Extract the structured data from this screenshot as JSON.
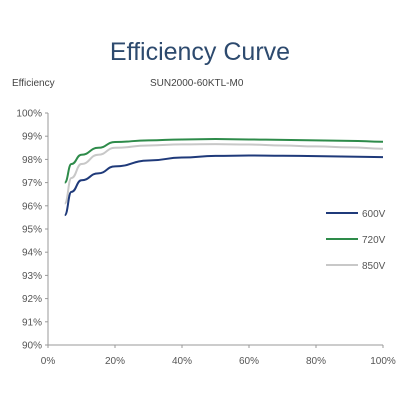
{
  "chart_data": {
    "type": "line",
    "title": "Efficiency Curve",
    "subtitle": "SUN2000-60KTL-M0",
    "ylabel": "Efficiency",
    "xlabel": "",
    "xlim": [
      0,
      100
    ],
    "ylim": [
      90,
      100
    ],
    "x_ticks": [
      "0%",
      "20%",
      "40%",
      "60%",
      "80%",
      "100%"
    ],
    "y_ticks": [
      "90%",
      "91%",
      "92%",
      "93%",
      "94%",
      "95%",
      "96%",
      "97%",
      "98%",
      "99%",
      "100%"
    ],
    "grid": false,
    "legend_position": "right",
    "series": [
      {
        "name": "600V",
        "color": "#1f3a7a",
        "x": [
          5,
          7,
          10,
          15,
          20,
          30,
          40,
          50,
          60,
          70,
          80,
          90,
          100
        ],
        "y": [
          95.6,
          96.6,
          97.1,
          97.4,
          97.7,
          97.95,
          98.08,
          98.15,
          98.17,
          98.16,
          98.14,
          98.12,
          98.1
        ]
      },
      {
        "name": "720V",
        "color": "#2e8b4a",
        "x": [
          5,
          7,
          10,
          15,
          20,
          30,
          40,
          50,
          60,
          70,
          80,
          90,
          100
        ],
        "y": [
          97.0,
          97.8,
          98.2,
          98.5,
          98.75,
          98.82,
          98.86,
          98.88,
          98.86,
          98.84,
          98.82,
          98.8,
          98.76
        ]
      },
      {
        "name": "850V",
        "color": "#c8c8c8",
        "x": [
          5,
          7,
          10,
          15,
          20,
          30,
          40,
          50,
          60,
          70,
          80,
          90,
          100
        ],
        "y": [
          96.1,
          97.2,
          97.8,
          98.2,
          98.5,
          98.6,
          98.65,
          98.66,
          98.64,
          98.6,
          98.56,
          98.52,
          98.46
        ]
      }
    ]
  }
}
